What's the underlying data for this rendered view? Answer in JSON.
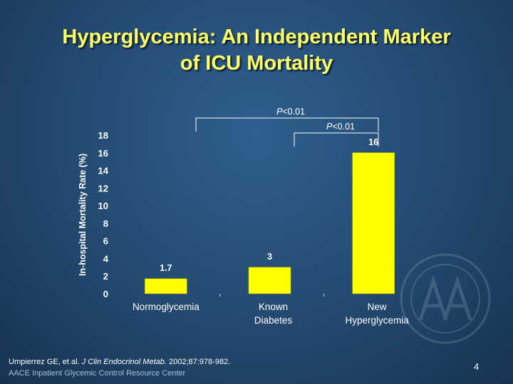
{
  "title": {
    "line1": "Hyperglycemia: An Independent Marker",
    "line2": "of ICU Mortality"
  },
  "chart_data": {
    "type": "bar",
    "ylabel": "In-hospital Mortality Rate (%)",
    "xlabel": "",
    "ylim": [
      0,
      18
    ],
    "yticks": [
      0,
      2,
      4,
      6,
      8,
      10,
      12,
      14,
      16,
      18
    ],
    "categories": [
      {
        "line1": "Normoglycemia",
        "line2": ""
      },
      {
        "line1": "Known",
        "line2": "Diabetes"
      },
      {
        "line1": "New",
        "line2": "Hyperglycemia"
      }
    ],
    "values": [
      1.7,
      3,
      16
    ],
    "value_labels": [
      "1.7",
      "3",
      "16"
    ],
    "bar_color": "#ffff00",
    "annotations": [
      {
        "label": "P<0.01",
        "from": 0,
        "to": 2
      },
      {
        "label": "P<0.01",
        "from": 1,
        "to": 2
      }
    ]
  },
  "footer": {
    "citation_authors": "Umpierrez GE, et al.",
    "citation_journal": "J Clin Endocrinol Metab.",
    "citation_details": "2002;87:978-982.",
    "center": "AACE Inpatient Glycemic Control Resource Center",
    "page_number": "4"
  },
  "watermark_icon": "aace-seal-icon"
}
